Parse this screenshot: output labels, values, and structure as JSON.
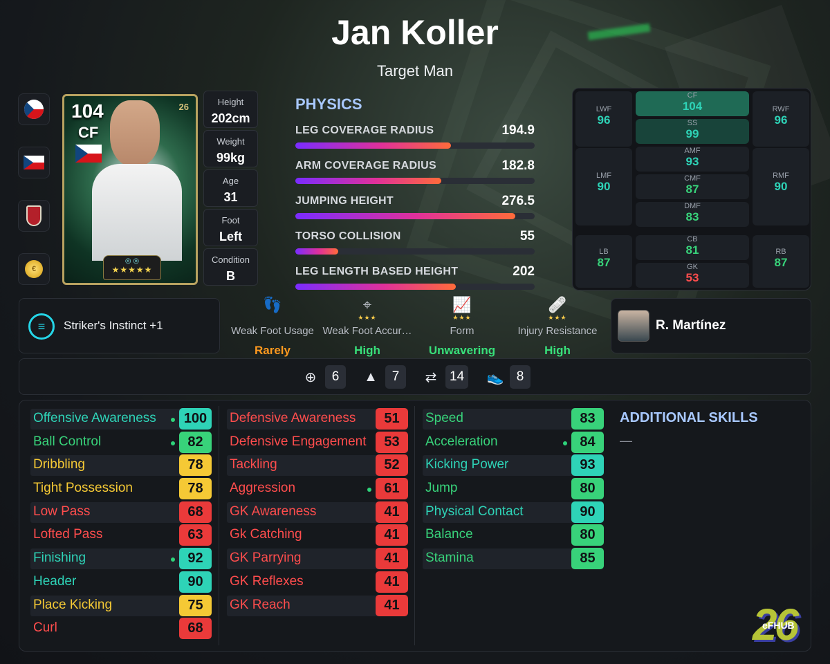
{
  "player": {
    "name": "Jan Koller",
    "playstyle": "Target Man"
  },
  "card": {
    "rating": "104",
    "position": "CF",
    "logo": "26",
    "badges": "◎ ◎",
    "stars": "★★★★★"
  },
  "side_icons": [
    "czech-flag-circle-icon",
    "czech-flag-icon",
    "club-badge-icon",
    "coin-icon"
  ],
  "info": [
    {
      "label": "Height",
      "value": "202cm"
    },
    {
      "label": "Weight",
      "value": "99kg"
    },
    {
      "label": "Age",
      "value": "31"
    },
    {
      "label": "Foot",
      "value": "Left"
    },
    {
      "label": "Condition",
      "value": "B"
    }
  ],
  "physics": {
    "title": "PHYSICS",
    "items": [
      {
        "name": "LEG COVERAGE RADIUS",
        "value": "194.9",
        "fill": 0.65
      },
      {
        "name": "ARM COVERAGE RADIUS",
        "value": "182.8",
        "fill": 0.61
      },
      {
        "name": "JUMPING HEIGHT",
        "value": "276.5",
        "fill": 0.92
      },
      {
        "name": "TORSO COLLISION",
        "value": "55",
        "fill": 0.18
      },
      {
        "name": "LEG LENGTH BASED HEIGHT",
        "value": "202",
        "fill": 0.67
      }
    ]
  },
  "positions": {
    "LWF": "96",
    "CF": "104",
    "SS": "99",
    "RWF": "96",
    "LMF": "90",
    "AMF": "93",
    "CMF": "87",
    "DMF": "83",
    "RMF": "90",
    "LB": "87",
    "CB": "81",
    "GK": "53",
    "RB": "87"
  },
  "ability": {
    "label": "Striker's Instinct +1",
    "icon": "efootball-ability-icon"
  },
  "traits": [
    {
      "icon": "footprint-icon",
      "stars": "",
      "label": "Weak Foot Usage",
      "value": "Rarely",
      "color": "orange"
    },
    {
      "icon": "crosshair-icon",
      "stars": "★★★",
      "label": "Weak Foot Accur…",
      "value": "High",
      "color": "green"
    },
    {
      "icon": "form-chart-icon",
      "stars": "★★★",
      "label": "Form",
      "value": "Unwavering",
      "color": "green"
    },
    {
      "icon": "bandage-icon",
      "stars": "★★★",
      "label": "Injury Resistance",
      "value": "High",
      "color": "green"
    }
  ],
  "manager": {
    "name": "R. Martínez"
  },
  "counters": [
    {
      "icon": "target-icon",
      "value": "6"
    },
    {
      "icon": "cone-icon",
      "value": "7"
    },
    {
      "icon": "swap-icon",
      "value": "14"
    },
    {
      "icon": "boot-icon",
      "value": "8"
    }
  ],
  "stats": {
    "attacking": [
      {
        "name": "Offensive Awareness",
        "value": "100",
        "tier": "teal",
        "dot": true
      },
      {
        "name": "Ball Control",
        "value": "82",
        "tier": "green",
        "dot": true
      },
      {
        "name": "Dribbling",
        "value": "78",
        "tier": "yellow",
        "dot": false
      },
      {
        "name": "Tight Possession",
        "value": "78",
        "tier": "yellow",
        "dot": false
      },
      {
        "name": "Low Pass",
        "value": "68",
        "tier": "red",
        "dot": false
      },
      {
        "name": "Lofted Pass",
        "value": "63",
        "tier": "red",
        "dot": false
      },
      {
        "name": "Finishing",
        "value": "92",
        "tier": "teal",
        "dot": true
      },
      {
        "name": "Header",
        "value": "90",
        "tier": "teal",
        "dot": false
      },
      {
        "name": "Place Kicking",
        "value": "75",
        "tier": "yellow",
        "dot": false
      },
      {
        "name": "Curl",
        "value": "68",
        "tier": "red",
        "dot": false
      }
    ],
    "defending": [
      {
        "name": "Defensive Awareness",
        "value": "51",
        "tier": "red",
        "dot": false
      },
      {
        "name": "Defensive Engagement",
        "value": "53",
        "tier": "red",
        "dot": false
      },
      {
        "name": "Tackling",
        "value": "52",
        "tier": "red",
        "dot": false
      },
      {
        "name": "Aggression",
        "value": "61",
        "tier": "red",
        "dot": true
      },
      {
        "name": "GK Awareness",
        "value": "41",
        "tier": "red",
        "dot": false
      },
      {
        "name": "Gk Catching",
        "value": "41",
        "tier": "red",
        "dot": false
      },
      {
        "name": "GK Parrying",
        "value": "41",
        "tier": "red",
        "dot": false
      },
      {
        "name": "GK Reflexes",
        "value": "41",
        "tier": "red",
        "dot": false
      },
      {
        "name": "GK Reach",
        "value": "41",
        "tier": "red",
        "dot": false
      }
    ],
    "physical": [
      {
        "name": "Speed",
        "value": "83",
        "tier": "green",
        "dot": false
      },
      {
        "name": "Acceleration",
        "value": "84",
        "tier": "green",
        "dot": true
      },
      {
        "name": "Kicking Power",
        "value": "93",
        "tier": "teal",
        "dot": false
      },
      {
        "name": "Jump",
        "value": "80",
        "tier": "green",
        "dot": false
      },
      {
        "name": "Physical Contact",
        "value": "90",
        "tier": "teal",
        "dot": false
      },
      {
        "name": "Balance",
        "value": "80",
        "tier": "green",
        "dot": false
      },
      {
        "name": "Stamina",
        "value": "85",
        "tier": "green",
        "dot": false
      }
    ]
  },
  "additional_skills": {
    "title": "ADDITIONAL SKILLS",
    "value": "—"
  },
  "watermark": {
    "num": "26",
    "text": "eFHUB"
  },
  "colors": {
    "teal": "#2ed3b7",
    "green": "#38d27a",
    "yellow": "#f5c935",
    "red": "#ea3a3a",
    "accent": "#a8c8ff"
  }
}
